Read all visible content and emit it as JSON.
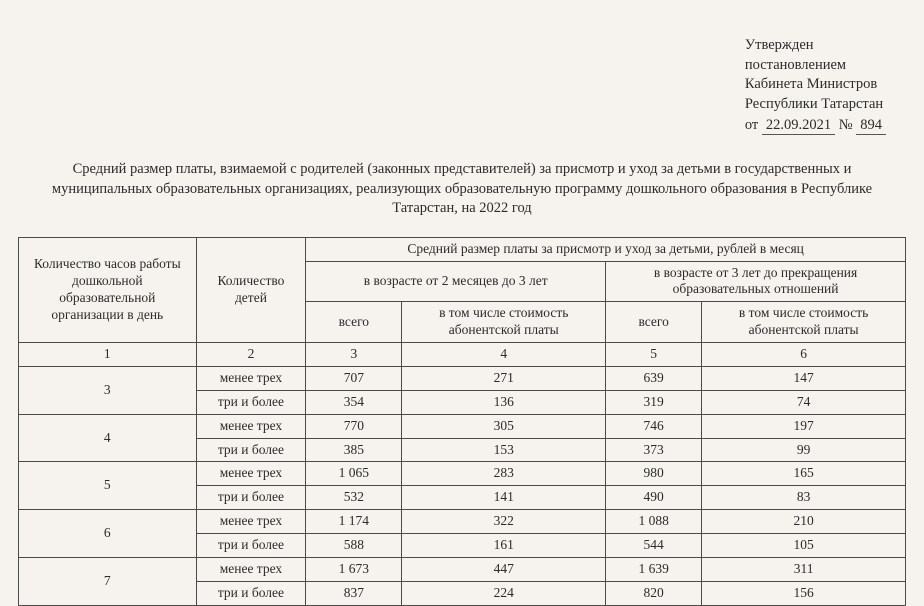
{
  "approval": {
    "line1": "Утвержден",
    "line2": "постановлением",
    "line3": "Кабинета Министров",
    "line4": "Республики Татарстан",
    "prefix": "от",
    "date": "22.09.2021",
    "num_sign": "№",
    "number": "894"
  },
  "title": "Средний размер платы, взимаемой с родителей (законных представителей) за присмотр и уход за детьми в государственных и муниципальных образовательных организациях, реализующих образовательную программу дошкольного образования в Республике Татарстан, на 2022 год",
  "table": {
    "header": {
      "hours": "Количество часов работы дошкольной образовательной организации в день",
      "children": "Количество детей",
      "fee_main": "Средний размер платы за присмотр и уход за детьми, рублей в месяц",
      "group1": "в возрасте от 2 месяцев до 3 лет",
      "group2": "в возрасте от 3 лет до прекращения образовательных отношений",
      "total": "всего",
      "sub_fee": "в том числе стоимость абонентской платы"
    },
    "colnums": [
      "1",
      "2",
      "3",
      "4",
      "5",
      "6"
    ],
    "rows": [
      {
        "hours": "3",
        "kids": "менее трех",
        "a": "707",
        "b": "271",
        "c": "639",
        "d": "147"
      },
      {
        "hours": "",
        "kids": "три и более",
        "a": "354",
        "b": "136",
        "c": "319",
        "d": "74"
      },
      {
        "hours": "4",
        "kids": "менее трех",
        "a": "770",
        "b": "305",
        "c": "746",
        "d": "197"
      },
      {
        "hours": "",
        "kids": "три и более",
        "a": "385",
        "b": "153",
        "c": "373",
        "d": "99"
      },
      {
        "hours": "5",
        "kids": "менее трех",
        "a": "1 065",
        "b": "283",
        "c": "980",
        "d": "165"
      },
      {
        "hours": "",
        "kids": "три и более",
        "a": "532",
        "b": "141",
        "c": "490",
        "d": "83"
      },
      {
        "hours": "6",
        "kids": "менее трех",
        "a": "1 174",
        "b": "322",
        "c": "1 088",
        "d": "210"
      },
      {
        "hours": "",
        "kids": "три и более",
        "a": "588",
        "b": "161",
        "c": "544",
        "d": "105"
      },
      {
        "hours": "7",
        "kids": "менее трех",
        "a": "1 673",
        "b": "447",
        "c": "1 639",
        "d": "311"
      },
      {
        "hours": "",
        "kids": "три и более",
        "a": "837",
        "b": "224",
        "c": "820",
        "d": "156"
      }
    ]
  },
  "style": {
    "page_bg": "#f6f3ef",
    "text_color": "#2b2b2b",
    "border_color": "#4a4a4a",
    "font_family": "Times New Roman",
    "title_fontsize_pt": 11,
    "body_fontsize_pt": 10
  }
}
